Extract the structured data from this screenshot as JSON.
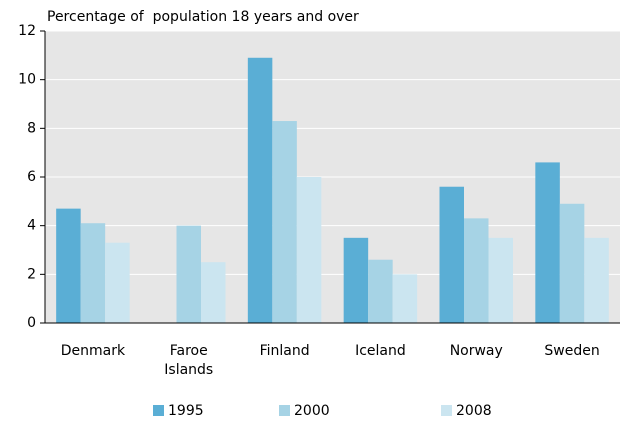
{
  "chart_data": {
    "type": "bar",
    "y_axis_label": "Percentage of  population 18 years and over",
    "categories": [
      "Denmark",
      "Faroe Islands",
      "Finland",
      "Iceland",
      "Norway",
      "Sweden"
    ],
    "series": [
      {
        "name": "1995",
        "color": "#5aaed5",
        "values": [
          4.7,
          null,
          10.9,
          3.5,
          5.6,
          6.6
        ]
      },
      {
        "name": "2000",
        "color": "#a6d3e5",
        "values": [
          4.1,
          4.0,
          8.3,
          2.6,
          4.3,
          4.9
        ]
      },
      {
        "name": "2008",
        "color": "#cbe5f0",
        "values": [
          3.3,
          2.5,
          6.0,
          2.0,
          3.5,
          3.5
        ]
      }
    ],
    "ylim": [
      0,
      12
    ],
    "yticks": [
      0,
      2,
      4,
      6,
      8,
      10,
      12
    ],
    "grid": true,
    "legend": "bottom"
  }
}
